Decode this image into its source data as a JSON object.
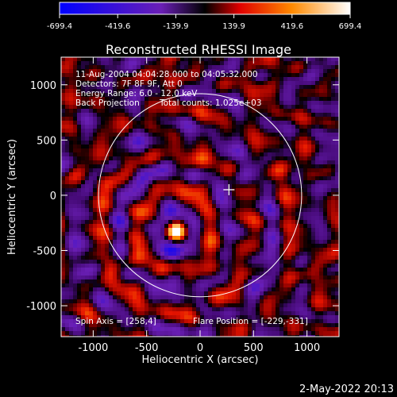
{
  "colorbar": {
    "ticks": [
      "-699.4",
      "-419.6",
      "-139.9",
      "139.9",
      "419.6",
      "699.4"
    ],
    "min": -699.4,
    "max": 699.4
  },
  "chart_data": {
    "type": "heatmap",
    "title": "Reconstructed RHESSI Image",
    "xlabel": "Heliocentric X (arcsec)",
    "ylabel": "Heliocentric Y (arcsec)",
    "xlim": [
      -1300,
      1300
    ],
    "ylim": [
      -1280,
      1250
    ],
    "xticks": [
      "-1000",
      "-500",
      "0",
      "500",
      "1000"
    ],
    "xtick_values": [
      -1000,
      -500,
      0,
      500,
      1000
    ],
    "yticks": [
      "1000",
      "500",
      "0",
      "-500",
      "-1000"
    ],
    "ytick_values": [
      1000,
      500,
      0,
      -500,
      -1000
    ],
    "solar_disk_radius_arcsec": 950,
    "disk_center": [
      0,
      0
    ],
    "flare_position": [
      -229,
      -331
    ],
    "cross_marker": [
      270,
      50
    ],
    "peak_source": [
      -230,
      -330
    ],
    "annotations": {
      "time_range": "11-Aug-2004 04:04:28.000 to 04:05:32.000",
      "detectors": "Detectors: 7F 8F 9F, Att 0",
      "energy_range": "Energy Range: 6.0 - 12.0 keV",
      "back_projection": "Back Projection",
      "total_counts": "Total counts: 1.025e+03",
      "spin_axis": "Spin Axis = [258,4]",
      "flare_position_text": "Flare Position = [-229,-331]"
    }
  },
  "footer": {
    "timestamp": "2-May-2022 20:13"
  },
  "colors": {
    "background": "#000000",
    "axis": "#ffffff",
    "disk": "#ffffff",
    "colormap": [
      "#0000ff",
      "#6a1fb5",
      "#000000",
      "#ff0000",
      "#ffa500",
      "#ffffff"
    ]
  }
}
